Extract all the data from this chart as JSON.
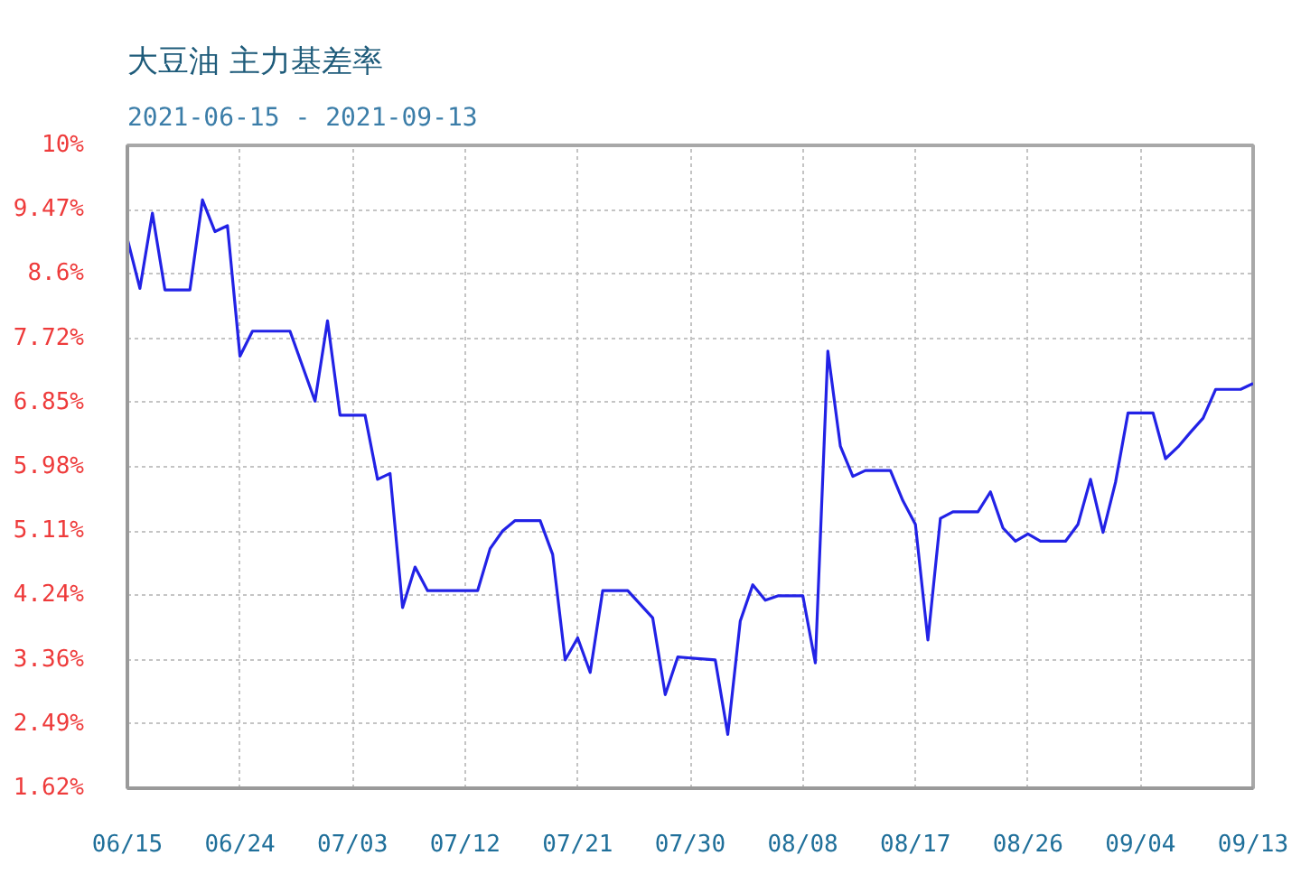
{
  "chart_data": {
    "type": "line",
    "title": "大豆油  主力基差率",
    "subtitle": "2021-06-15 - 2021-09-13",
    "x": [
      "2021-06-15",
      "2021-06-16",
      "2021-06-17",
      "2021-06-18",
      "2021-06-20",
      "2021-06-21",
      "2021-06-22",
      "2021-06-23",
      "2021-06-24",
      "2021-06-25",
      "2021-06-28",
      "2021-06-30",
      "2021-07-01",
      "2021-07-02",
      "2021-07-04",
      "2021-07-05",
      "2021-07-06",
      "2021-07-07",
      "2021-07-08",
      "2021-07-09",
      "2021-07-13",
      "2021-07-14",
      "2021-07-15",
      "2021-07-16",
      "2021-07-18",
      "2021-07-19",
      "2021-07-20",
      "2021-07-21",
      "2021-07-22",
      "2021-07-23",
      "2021-07-25",
      "2021-07-27",
      "2021-07-28",
      "2021-07-29",
      "2021-08-01",
      "2021-08-02",
      "2021-08-03",
      "2021-08-04",
      "2021-08-05",
      "2021-08-06",
      "2021-08-08",
      "2021-08-09",
      "2021-08-10",
      "2021-08-11",
      "2021-08-12",
      "2021-08-13",
      "2021-08-15",
      "2021-08-16",
      "2021-08-17",
      "2021-08-18",
      "2021-08-19",
      "2021-08-20",
      "2021-08-22",
      "2021-08-23",
      "2021-08-24",
      "2021-08-25",
      "2021-08-26",
      "2021-08-27",
      "2021-08-29",
      "2021-08-30",
      "2021-08-31",
      "2021-09-01",
      "2021-09-02",
      "2021-09-03",
      "2021-09-05",
      "2021-09-06",
      "2021-09-07",
      "2021-09-08",
      "2021-09-09",
      "2021-09-10",
      "2021-09-12",
      "2021-09-13"
    ],
    "series": [
      {
        "color": "#2222e6",
        "values": [
          9.07,
          8.4,
          9.42,
          8.38,
          8.38,
          9.6,
          9.17,
          9.25,
          7.48,
          7.82,
          7.82,
          6.87,
          7.96,
          6.68,
          6.68,
          5.81,
          5.89,
          4.07,
          4.62,
          4.3,
          4.3,
          4.87,
          5.11,
          5.25,
          5.25,
          4.79,
          3.36,
          3.66,
          3.19,
          4.3,
          4.3,
          3.93,
          2.89,
          3.4,
          3.36,
          2.35,
          3.89,
          4.38,
          4.17,
          4.23,
          4.23,
          3.32,
          7.55,
          6.26,
          5.85,
          5.93,
          5.93,
          5.52,
          5.2,
          3.63,
          5.28,
          5.37,
          5.37,
          5.64,
          5.15,
          4.97,
          5.07,
          4.97,
          4.97,
          5.2,
          5.81,
          5.09,
          5.77,
          6.71,
          6.71,
          6.09,
          6.25,
          6.45,
          6.64,
          7.03,
          7.03,
          7.11
        ]
      }
    ],
    "xlim": [
      "2021-06-15",
      "2021-09-13"
    ],
    "xticks": [
      {
        "value": "2021-06-15",
        "label": "06/15"
      },
      {
        "value": "2021-06-24",
        "label": "06/24"
      },
      {
        "value": "2021-07-03",
        "label": "07/03"
      },
      {
        "value": "2021-07-12",
        "label": "07/12"
      },
      {
        "value": "2021-07-21",
        "label": "07/21"
      },
      {
        "value": "2021-07-30",
        "label": "07/30"
      },
      {
        "value": "2021-08-08",
        "label": "08/08"
      },
      {
        "value": "2021-08-17",
        "label": "08/17"
      },
      {
        "value": "2021-08-26",
        "label": "08/26"
      },
      {
        "value": "2021-09-04",
        "label": "09/04"
      },
      {
        "value": "2021-09-13",
        "label": "09/13"
      }
    ],
    "ylim": [
      1.62,
      10.34
    ],
    "yticks": [
      {
        "value": 1.62,
        "label": "1.62%"
      },
      {
        "value": 2.49,
        "label": "2.49%"
      },
      {
        "value": 3.36,
        "label": "3.36%"
      },
      {
        "value": 4.24,
        "label": "4.24%"
      },
      {
        "value": 5.11,
        "label": "5.11%"
      },
      {
        "value": 5.98,
        "label": "5.98%"
      },
      {
        "value": 6.85,
        "label": "6.85%"
      },
      {
        "value": 7.72,
        "label": "7.72%"
      },
      {
        "value": 8.6,
        "label": "8.6%"
      },
      {
        "value": 9.47,
        "label": "9.47%"
      },
      {
        "value": 10.34,
        "label": "10%"
      }
    ],
    "grid": true
  }
}
